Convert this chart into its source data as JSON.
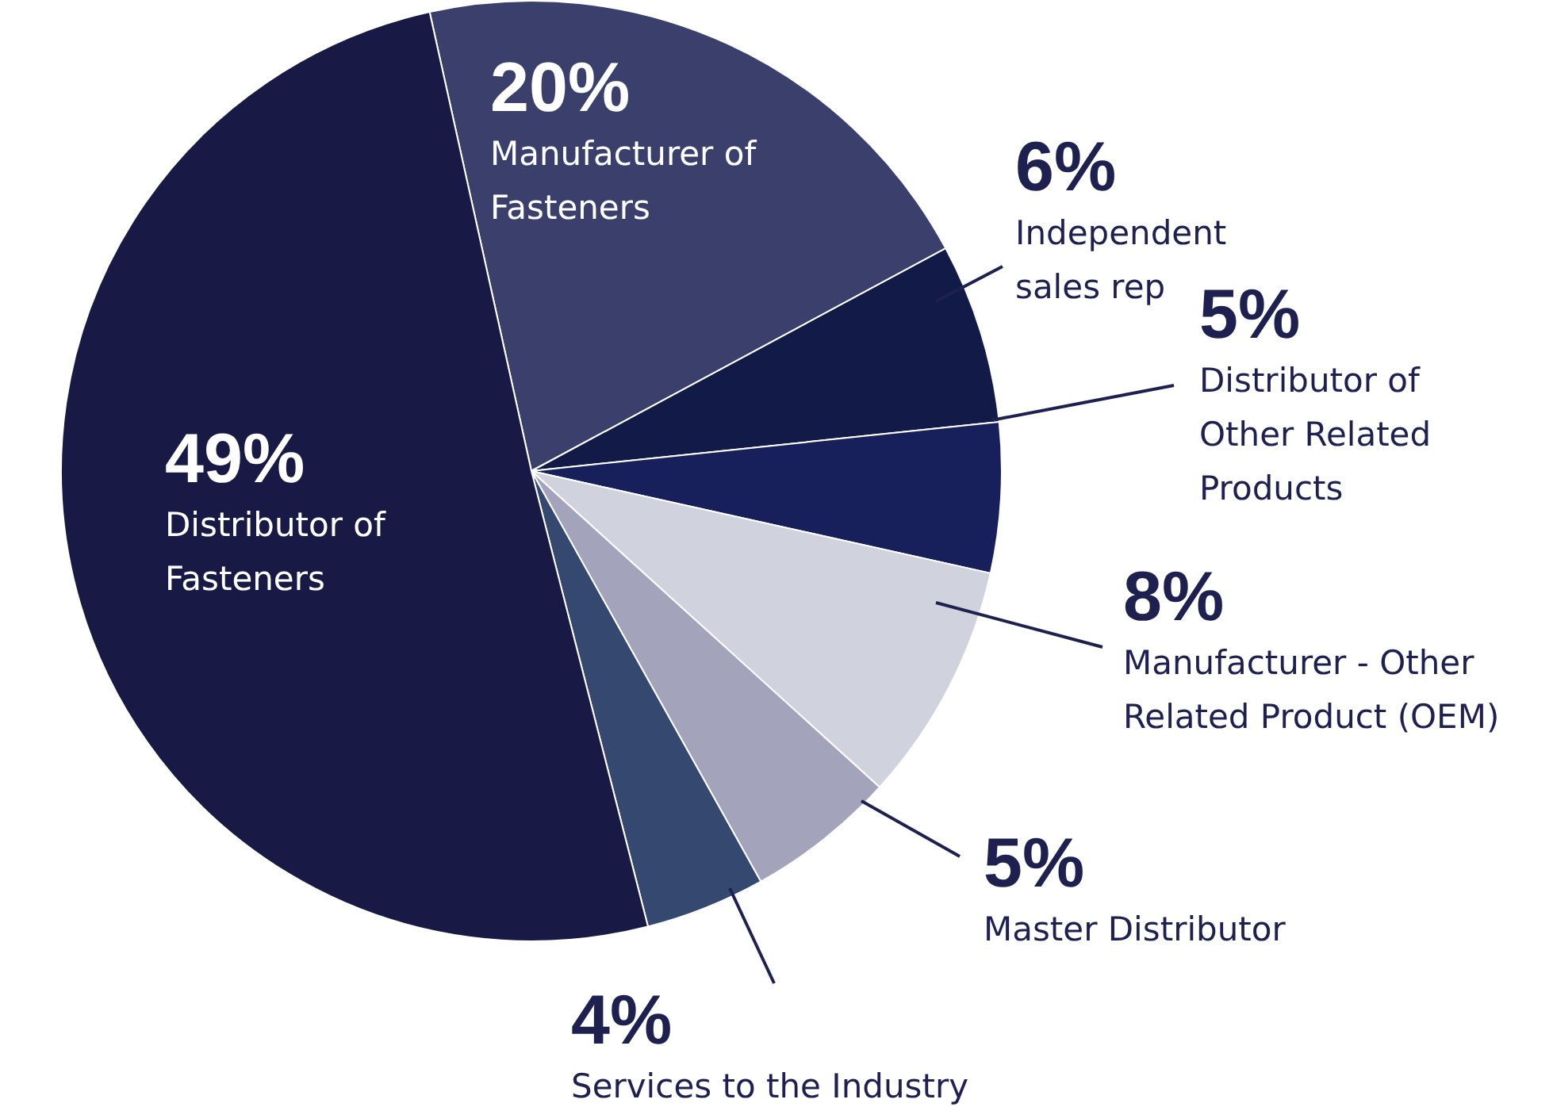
{
  "chart_data": {
    "type": "pie",
    "categories": [
      "Manufacturer of Fasteners",
      "Independent sales rep",
      "Distributor of Other Related Products",
      "Manufacturer - Other Related Product (OEM)",
      "Master Distributor",
      "Services to the Industry",
      "Distributor of Fasteners"
    ],
    "values": [
      20,
      6,
      5,
      8,
      5,
      4,
      49
    ],
    "value_labels": [
      "20%",
      "6%",
      "5%",
      "8%",
      "5%",
      "4%",
      "49%"
    ],
    "colors": [
      "#3a3f6b",
      "#121a47",
      "#17205a",
      "#d0d3de",
      "#a3a4bb",
      "#344870",
      "#181a45"
    ],
    "legend": false
  }
}
